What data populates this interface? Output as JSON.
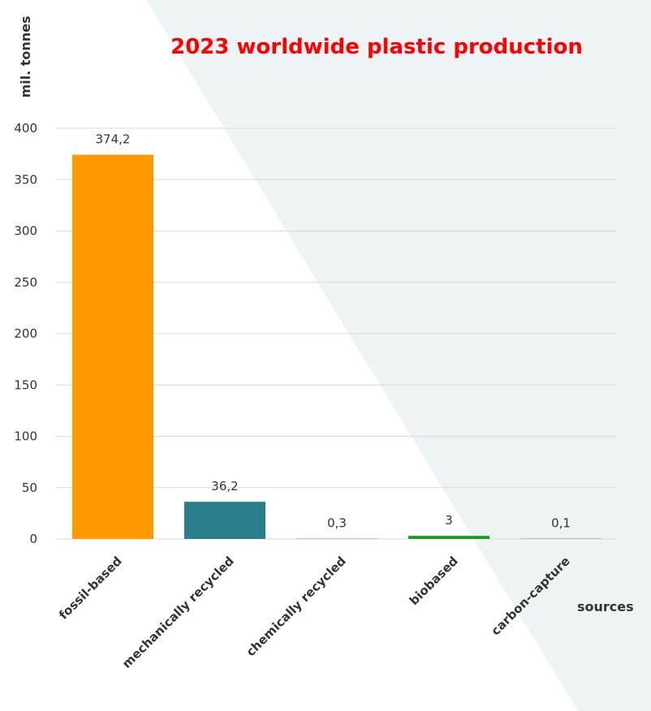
{
  "chart_data": {
    "type": "bar",
    "title": "2023 worldwide plastic production",
    "ylabel": "mil. tonnes",
    "xlabel": "sources",
    "ylim": [
      0,
      400
    ],
    "yticks": [
      "0",
      "50",
      "100",
      "150",
      "200",
      "250",
      "300",
      "350",
      "400"
    ],
    "categories": [
      "fossil-based",
      "mechanically recycled",
      "chemically recycled",
      "biobased",
      "carbon-capture"
    ],
    "values": [
      374.2,
      36.2,
      0.3,
      3,
      0.1
    ],
    "value_labels": [
      "374,2",
      "36,2",
      "0,3",
      "3",
      "0,1"
    ],
    "colors": [
      "#ff9900",
      "#2b7f8a",
      "#5b9bd5",
      "#1a9c1a",
      "#8c8c8c"
    ],
    "grid": true,
    "legend": "none"
  }
}
